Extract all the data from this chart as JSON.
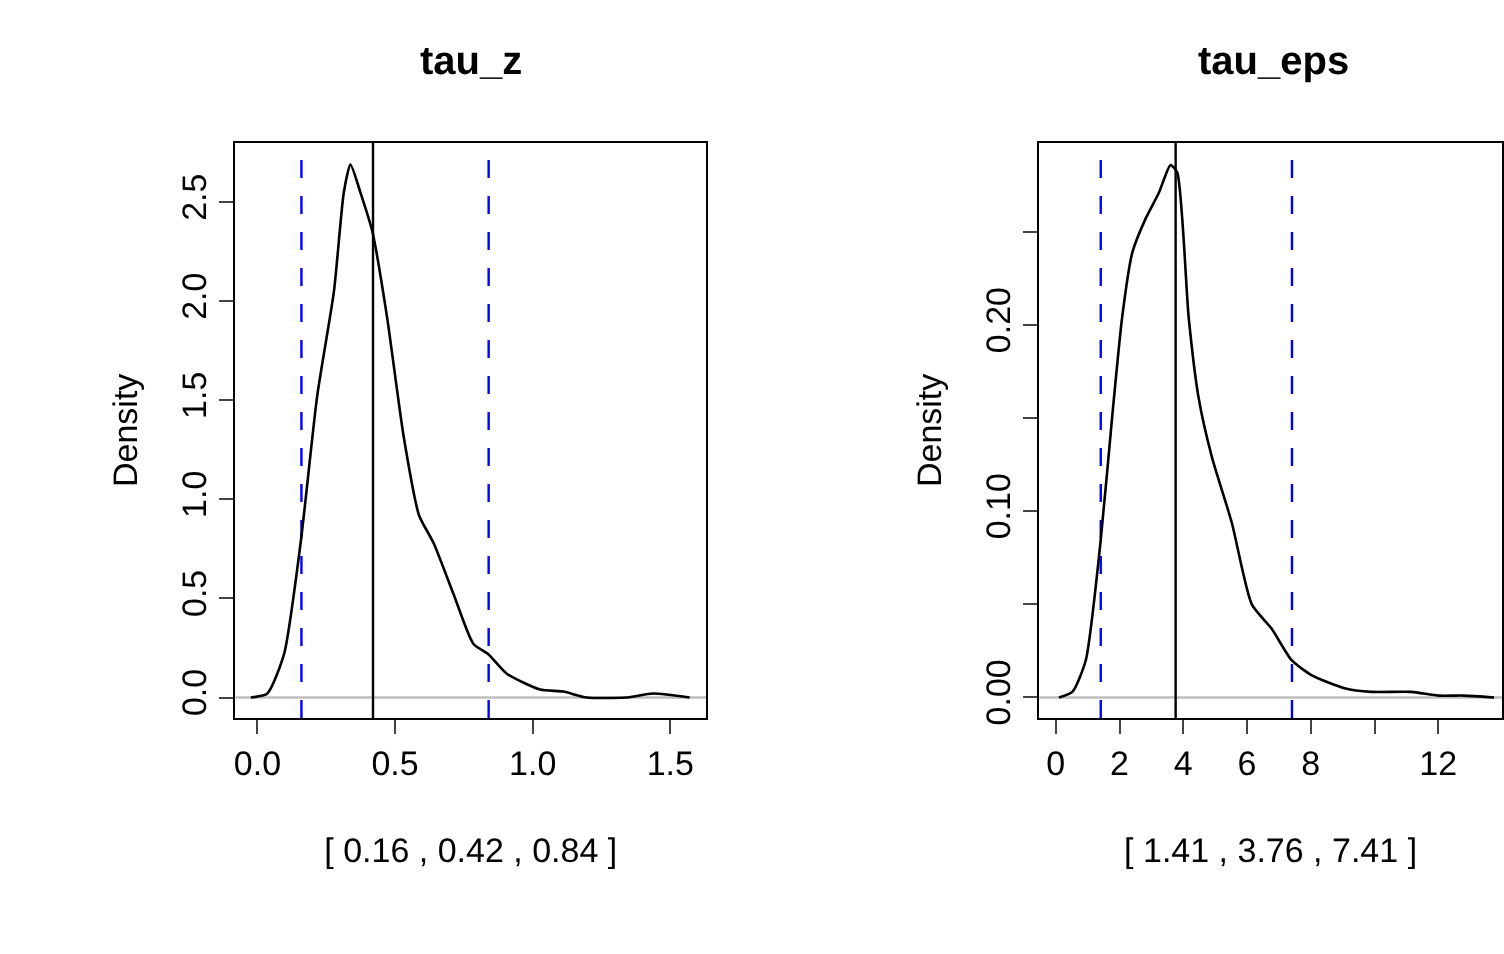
{
  "chart_data": [
    {
      "type": "line",
      "title": "tau_z",
      "xlabel": "[ 0.16 , 0.42 , 0.84 ]",
      "ylabel": "Density",
      "xlim": [
        -0.08,
        1.63
      ],
      "ylim": [
        -0.103,
        2.8
      ],
      "xticks": [
        {
          "value": 0,
          "label": "0.0"
        },
        0.5,
        {
          "value": 1,
          "label": "1.0"
        },
        1.5
      ],
      "yticks": [
        {
          "value": 0,
          "label": "0.0"
        },
        0.5,
        {
          "value": 1,
          "label": "1.0"
        },
        1.5,
        {
          "value": 2,
          "label": "2.0"
        },
        2.5
      ],
      "grid": false,
      "marker": "none",
      "line_style": "solid",
      "series": [
        {
          "color": "#000000",
          "x": [
            -0.024,
            0.036,
            0.097,
            0.157,
            0.217,
            0.278,
            0.314,
            0.338,
            0.374,
            0.418,
            0.471,
            0.531,
            0.587,
            0.64,
            0.713,
            0.785,
            0.838,
            0.906,
            1.027,
            1.111,
            1.196,
            1.34,
            1.437,
            1.57
          ],
          "values": [
            0,
            0.02,
            0.22,
            0.78,
            1.52,
            2.05,
            2.55,
            2.69,
            2.55,
            2.35,
            1.92,
            1.32,
            0.92,
            0.78,
            0.52,
            0.27,
            0.22,
            0.12,
            0.04,
            0.03,
            0,
            0,
            0.02,
            0
          ]
        }
      ],
      "ref_lines": [
        {
          "axis": "y",
          "value": 0,
          "color": "#bebebe",
          "line_style": "solid"
        },
        {
          "axis": "x",
          "value": 0.16,
          "color": "#0000ff",
          "line_style": "dashed"
        },
        {
          "axis": "x",
          "value": 0.42,
          "color": "#000000",
          "line_style": "solid"
        },
        {
          "axis": "x",
          "value": 0.84,
          "color": "#0000ff",
          "line_style": "dashed"
        }
      ]
    },
    {
      "type": "line",
      "title": "tau_eps",
      "xlabel": "[ 1.41 , 3.76 , 7.41 ]",
      "ylabel": "Density",
      "xlim": [
        -0.52,
        14.0
      ],
      "ylim": [
        -0.011,
        0.298
      ],
      "xticks": [
        0,
        2,
        4,
        6,
        8,
        {
          "value": 10,
          "label": null
        },
        12
      ],
      "yticks": [
        {
          "value": 0,
          "label": "0.00"
        },
        {
          "value": 0.05,
          "label": null
        },
        {
          "value": 0.1,
          "label": "0.10"
        },
        {
          "value": 0.15,
          "label": null
        },
        {
          "value": 0.2,
          "label": "0.20"
        },
        {
          "value": 0.25,
          "label": null
        }
      ],
      "grid": false,
      "marker": "none",
      "line_style": "solid",
      "series": [
        {
          "color": "#000000",
          "x": [
            0.1,
            0.52,
            0.94,
            1.4,
            1.77,
            2.08,
            2.4,
            2.81,
            3.23,
            3.6,
            3.81,
            4.17,
            4.48,
            4.9,
            5.52,
            6.15,
            6.77,
            7.4,
            8.02,
            9.06,
            9.9,
            11.15,
            12.0,
            12.8,
            13.75
          ],
          "values": [
            0,
            0.003,
            0.02,
            0.083,
            0.151,
            0.204,
            0.239,
            0.257,
            0.271,
            0.286,
            0.282,
            0.204,
            0.161,
            0.129,
            0.094,
            0.05,
            0.037,
            0.02,
            0.012,
            0.005,
            0.003,
            0.003,
            0.001,
            0.001,
            0
          ]
        }
      ],
      "ref_lines": [
        {
          "axis": "y",
          "value": 0,
          "color": "#bebebe",
          "line_style": "solid"
        },
        {
          "axis": "x",
          "value": 1.41,
          "color": "#0000ff",
          "line_style": "dashed"
        },
        {
          "axis": "x",
          "value": 3.76,
          "color": "#000000",
          "line_style": "solid"
        },
        {
          "axis": "x",
          "value": 7.41,
          "color": "#0000ff",
          "line_style": "dashed"
        }
      ]
    }
  ]
}
